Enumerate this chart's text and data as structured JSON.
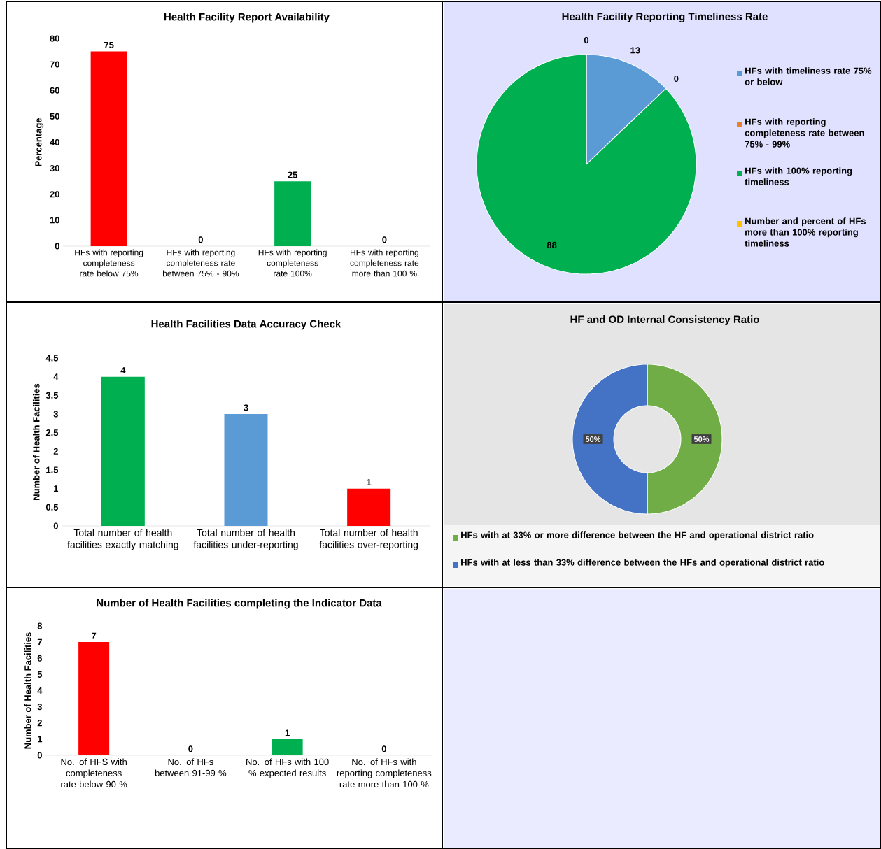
{
  "chart_data": [
    {
      "type": "bar",
      "title": "Health Facility Report Availability",
      "ylabel": "Percentage",
      "categories": [
        "HFs with reporting completeness rate below 75%",
        "HFs with reporting completeness rate between 75% - 90%",
        "HFs with reporting completeness rate 100%",
        "HFs with reporting completeness rate more than 100 %"
      ],
      "values": [
        75,
        0,
        25,
        0
      ],
      "colors": [
        "#ff0000",
        "#ffc000",
        "#00b050",
        "#4472c4"
      ],
      "ylim": [
        0,
        80
      ],
      "yticks": [
        0,
        10,
        20,
        30,
        40,
        50,
        60,
        70,
        80
      ],
      "data_labels": true
    },
    {
      "type": "pie",
      "title": "Health Facility Reporting Timeliness Rate",
      "categories": [
        "HFs with timeliness rate 75% or below",
        "HFs with reporting completeness rate between 75% - 99%",
        "HFs with 100% reporting timeliness",
        "Number and percent of HFs more than 100% reporting timeliness"
      ],
      "values": [
        13,
        0,
        88,
        0
      ],
      "colors": [
        "#5b9bd5",
        "#ed7d31",
        "#00b050",
        "#ffc000"
      ],
      "value_labels": [
        "13",
        "0",
        "88",
        "0"
      ],
      "legend": "right"
    },
    {
      "type": "bar",
      "title": "Health Facilities Data Accuracy Check",
      "ylabel": "Number of Health Facilities",
      "categories": [
        "Total number of health facilities exactly matching",
        "Total number of health facilities under-reporting",
        "Total number of health facilities over-reporting"
      ],
      "values": [
        4,
        3,
        1
      ],
      "colors": [
        "#00b050",
        "#5b9bd5",
        "#ff0000"
      ],
      "ylim": [
        0,
        4.5
      ],
      "yticks": [
        0,
        0.5,
        1,
        1.5,
        2,
        2.5,
        3,
        3.5,
        4,
        4.5
      ],
      "data_labels": true
    },
    {
      "type": "donut",
      "title": "HF and OD Internal Consistency Ratio",
      "categories": [
        "HFs with at 33% or more difference between the HF and operational district ratio",
        "HFs with at less than 33% difference between the HFs and operational district ratio"
      ],
      "values": [
        50,
        50
      ],
      "colors": [
        "#70ad47",
        "#4472c4"
      ],
      "value_labels": [
        "50%",
        "50%"
      ],
      "legend": "bottom"
    },
    {
      "type": "bar",
      "title": "Number of Health Facilities completing the Indicator Data",
      "ylabel": "Number of Health Facilities",
      "categories": [
        "No. of HFS with completeness rate below 90 %",
        "No. of HFs between 91-99 %",
        "No. of HFs with 100 % expected results",
        "No. of HFs with reporting completeness rate more than 100 %"
      ],
      "values": [
        7,
        0,
        1,
        0
      ],
      "colors": [
        "#ff0000",
        "#ffc000",
        "#00b050",
        "#4472c4"
      ],
      "ylim": [
        0,
        8
      ],
      "yticks": [
        0,
        1,
        2,
        3,
        4,
        5,
        6,
        7,
        8
      ],
      "data_labels": true
    }
  ]
}
